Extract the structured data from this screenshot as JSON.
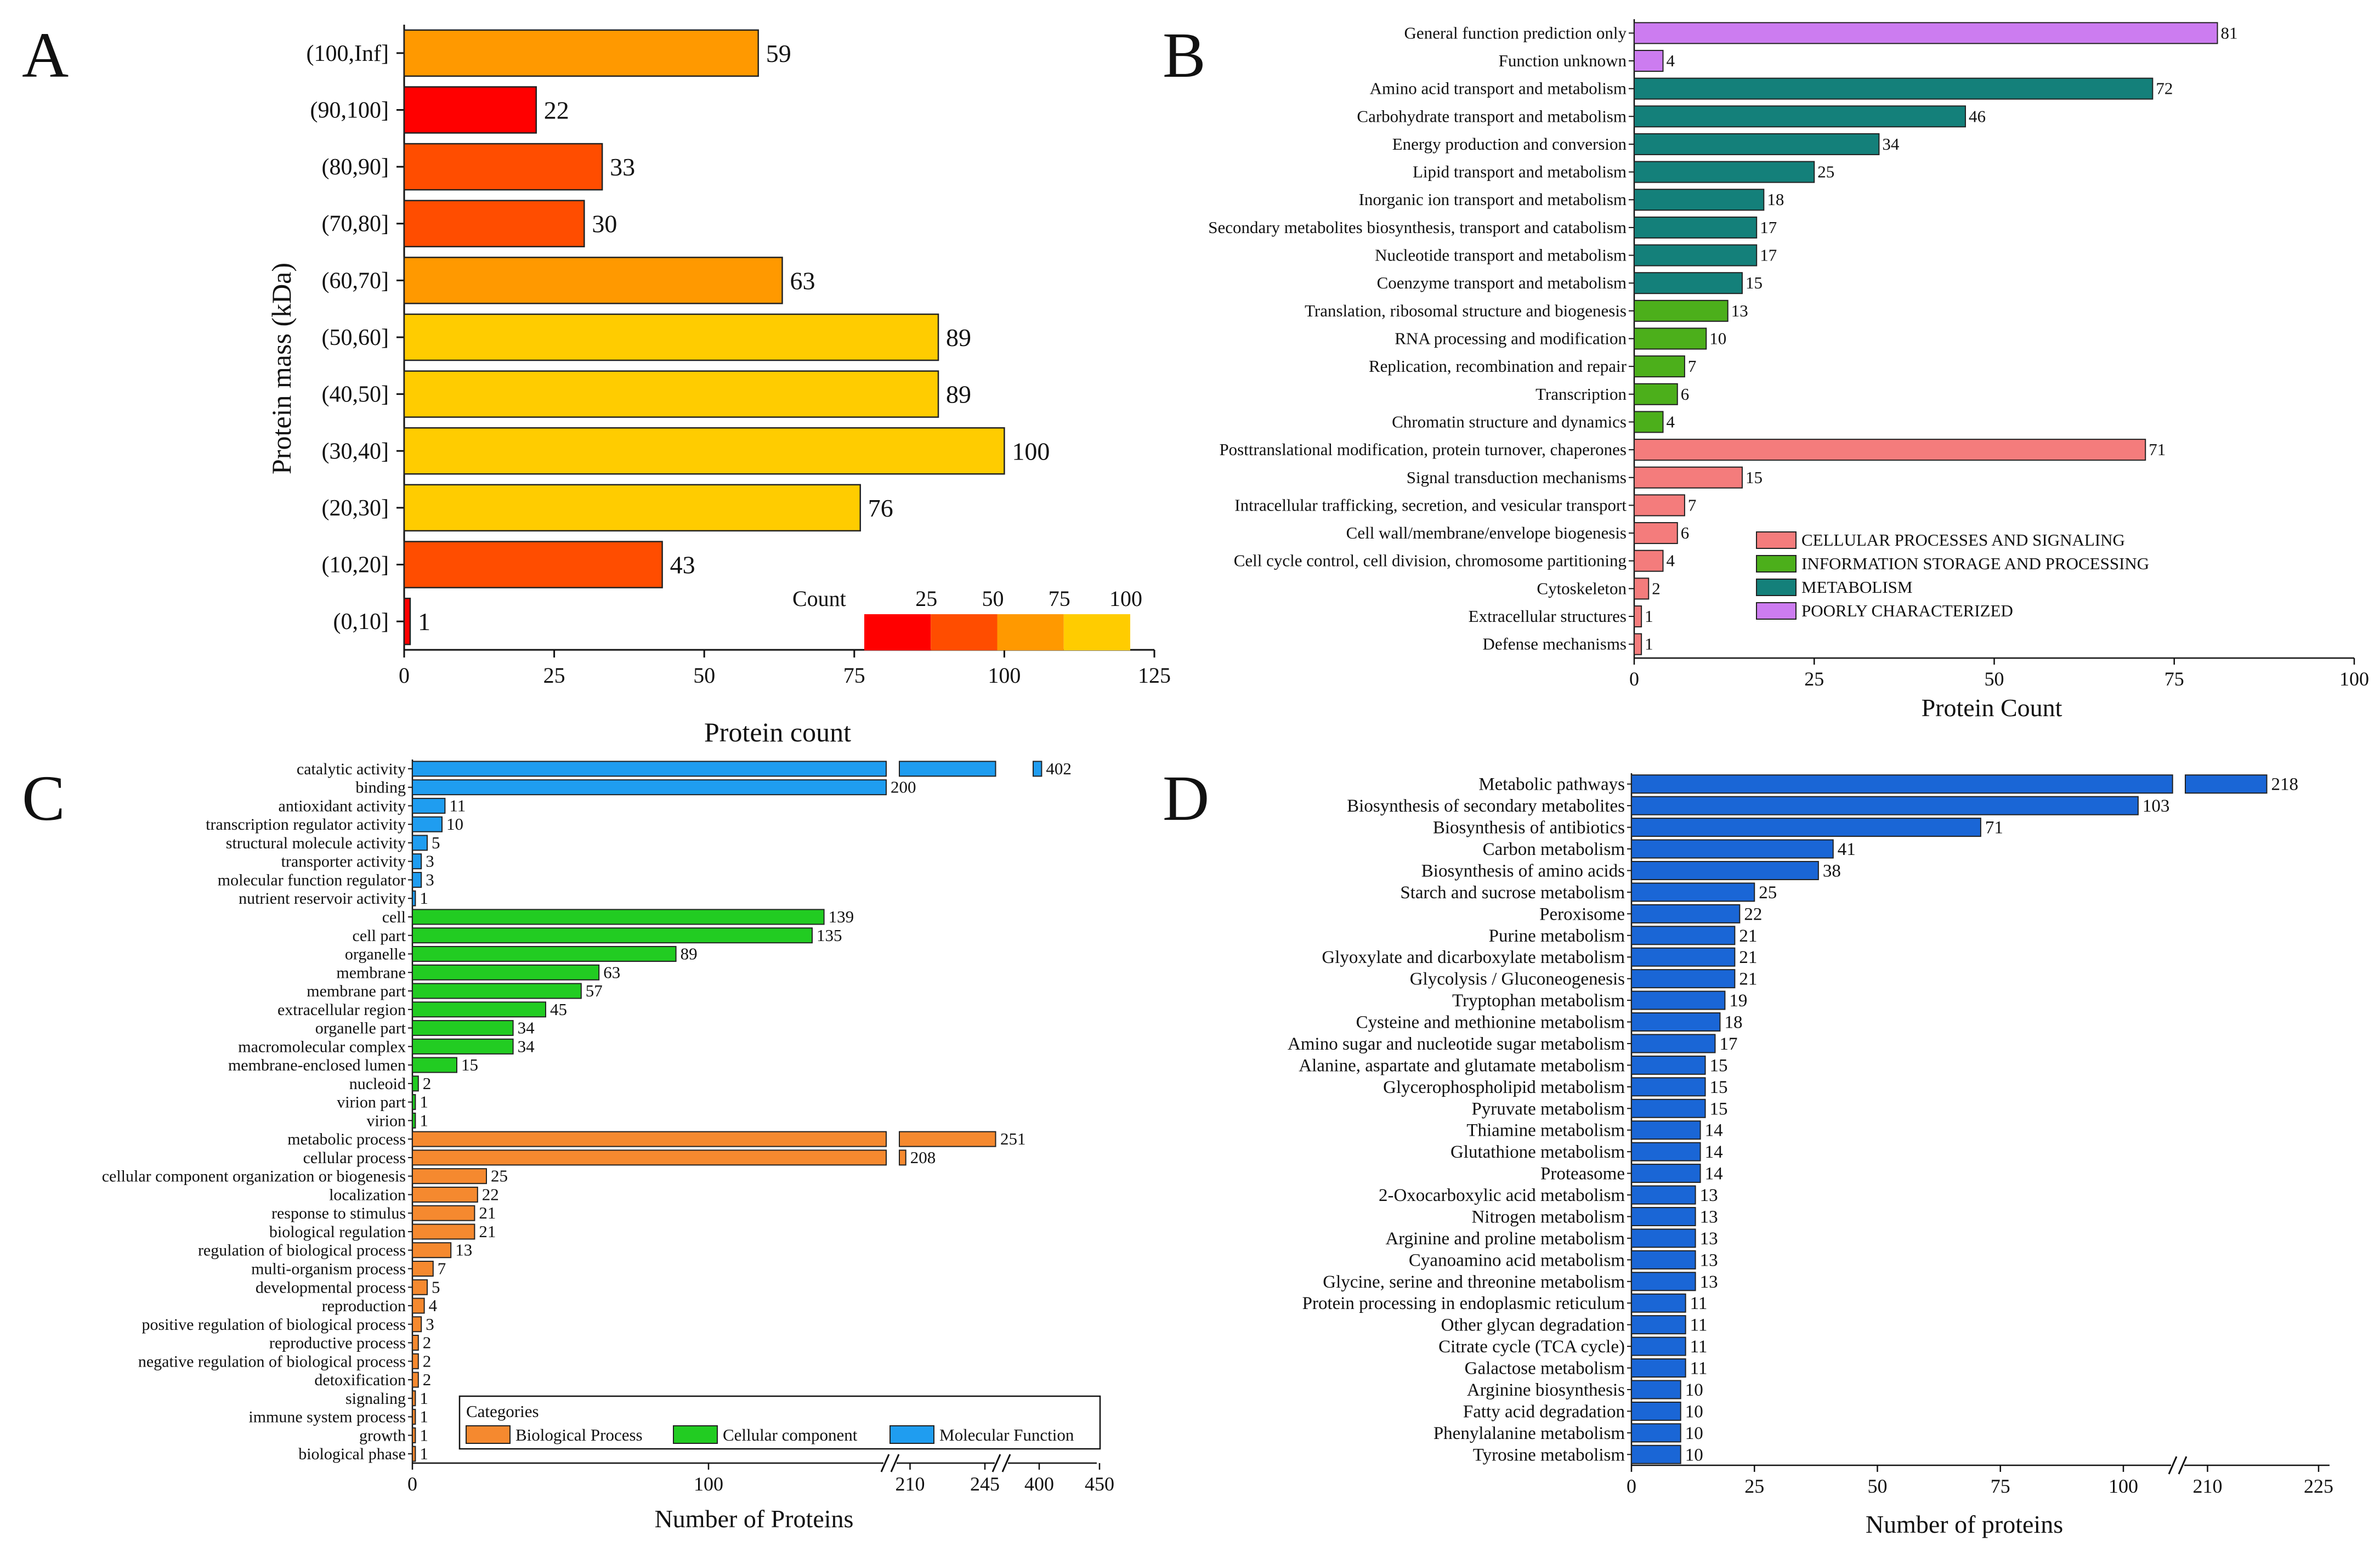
{
  "chart_data": [
    {
      "id": "A",
      "panel_letter": "A",
      "type": "bar",
      "orientation": "horizontal",
      "categories": [
        "(100,Inf]",
        "(90,100]",
        "(80,90]",
        "(70,80]",
        "(60,70]",
        "(50,60]",
        "(40,50]",
        "(30,40]",
        "(20,30]",
        "(10,20]",
        "(0,10]"
      ],
      "values": [
        59,
        22,
        33,
        30,
        63,
        89,
        89,
        100,
        76,
        43,
        1
      ],
      "xlabel": "Protein count",
      "ylabel": "Protein mass (kDa)",
      "xlim": [
        0,
        125
      ],
      "xticks": [
        0,
        25,
        50,
        75,
        100,
        125
      ],
      "color_scale": {
        "title": "Count",
        "ticks": [
          25,
          50,
          75,
          100
        ],
        "colors": [
          "#ff0000",
          "#ff4d00",
          "#ff9900",
          "#ffcc00"
        ]
      }
    },
    {
      "id": "B",
      "panel_letter": "B",
      "type": "bar",
      "orientation": "horizontal",
      "categories": [
        "General function prediction only",
        "Function unknown",
        "Amino acid transport and metabolism",
        "Carbohydrate transport and metabolism",
        "Energy production and conversion",
        "Lipid transport and metabolism",
        "Inorganic ion transport and metabolism",
        "Secondary metabolites biosynthesis, transport and catabolism",
        "Nucleotide transport and metabolism",
        "Coenzyme transport and metabolism",
        "Translation, ribosomal structure and biogenesis",
        "RNA processing and modification",
        "Replication, recombination and repair",
        "Transcription",
        "Chromatin structure and dynamics",
        "Posttranslational modification, protein turnover, chaperones",
        "Signal transduction mechanisms",
        "Intracellular trafficking, secretion, and vesicular transport",
        "Cell wall/membrane/envelope biogenesis",
        "Cell cycle control, cell division, chromosome partitioning",
        "Cytoskeleton",
        "Extracellular structures",
        "Defense mechanisms"
      ],
      "values": [
        81,
        4,
        72,
        46,
        34,
        25,
        18,
        17,
        17,
        15,
        13,
        10,
        7,
        6,
        4,
        71,
        15,
        7,
        6,
        4,
        2,
        1,
        1
      ],
      "groups": [
        3,
        3,
        2,
        2,
        2,
        2,
        2,
        2,
        2,
        2,
        1,
        1,
        1,
        1,
        1,
        0,
        0,
        0,
        0,
        0,
        0,
        0,
        0
      ],
      "legend": [
        "CELLULAR PROCESSES AND SIGNALING",
        "INFORMATION STORAGE AND PROCESSING",
        "METABOLISM",
        "POORLY CHARACTERIZED"
      ],
      "group_colors": [
        "#f47c7c",
        "#4caf1b",
        "#14807a",
        "#cc7cf0"
      ],
      "xlabel": "Protein Count",
      "xlim": [
        0,
        100
      ],
      "xticks": [
        0,
        25,
        50,
        75,
        100
      ]
    },
    {
      "id": "C",
      "panel_letter": "C",
      "type": "bar",
      "orientation": "horizontal",
      "categories": [
        "catalytic activity",
        "binding",
        "antioxidant activity",
        "transcription regulator activity",
        "structural molecule activity",
        "transporter activity",
        "molecular function regulator",
        "nutrient reservoir activity",
        "cell",
        "cell part",
        "organelle",
        "membrane",
        "membrane part",
        "extracellular region",
        "organelle part",
        "macromolecular complex",
        "membrane-enclosed lumen",
        "nucleoid",
        "virion part",
        "virion",
        "metabolic process",
        "cellular process",
        "cellular component organization or biogenesis",
        "localization",
        "response to stimulus",
        "biological regulation",
        "regulation of biological process",
        "multi-organism process",
        "developmental process",
        "reproduction",
        "positive regulation of biological process",
        "reproductive process",
        "negative regulation of biological process",
        "detoxification",
        "signaling",
        "immune system process",
        "growth",
        "biological phase"
      ],
      "values": [
        402,
        200,
        11,
        10,
        5,
        3,
        3,
        1,
        139,
        135,
        89,
        63,
        57,
        45,
        34,
        34,
        15,
        2,
        1,
        1,
        251,
        208,
        25,
        22,
        21,
        21,
        13,
        7,
        5,
        4,
        3,
        2,
        2,
        2,
        1,
        1,
        1,
        1
      ],
      "groups": [
        2,
        2,
        2,
        2,
        2,
        2,
        2,
        2,
        1,
        1,
        1,
        1,
        1,
        1,
        1,
        1,
        1,
        1,
        1,
        1,
        0,
        0,
        0,
        0,
        0,
        0,
        0,
        0,
        0,
        0,
        0,
        0,
        0,
        0,
        0,
        0,
        0,
        0
      ],
      "legend_title": "Categories",
      "legend": [
        "Biological Process",
        "Cellular component",
        "Molecular Function"
      ],
      "group_colors": [
        "#f5892f",
        "#22cc22",
        "#1f9df0"
      ],
      "xlabel": "Number of Proteins",
      "xticks": [
        0,
        100,
        210,
        245,
        400,
        450
      ],
      "axis_breaks": [
        [
          160,
          205
        ],
        [
          250,
          395
        ]
      ]
    },
    {
      "id": "D",
      "panel_letter": "D",
      "type": "bar",
      "orientation": "horizontal",
      "categories": [
        "Metabolic pathways",
        "Biosynthesis of secondary metabolites",
        "Biosynthesis of antibiotics",
        "Carbon metabolism",
        "Biosynthesis of amino acids",
        "Starch and sucrose metabolism",
        "Peroxisome",
        "Purine metabolism",
        "Glyoxylate and dicarboxylate metabolism",
        "Glycolysis / Gluconeogenesis",
        "Tryptophan metabolism",
        "Cysteine and methionine metabolism",
        "Amino sugar and nucleotide sugar metabolism",
        "Alanine, aspartate and glutamate metabolism",
        "Glycerophospholipid metabolism",
        "Pyruvate metabolism",
        "Thiamine metabolism",
        "Glutathione metabolism",
        "Proteasome",
        "2-Oxocarboxylic acid metabolism",
        "Nitrogen metabolism",
        "Arginine and proline metabolism",
        "Cyanoamino acid metabolism",
        "Glycine, serine and threonine metabolism",
        "Protein processing in endoplasmic reticulum",
        "Other glycan degradation",
        "Citrate cycle (TCA cycle)",
        "Galactose metabolism",
        "Arginine biosynthesis",
        "Fatty acid degradation",
        "Phenylalanine metabolism",
        "Tyrosine metabolism"
      ],
      "values": [
        218,
        103,
        71,
        41,
        38,
        25,
        22,
        21,
        21,
        21,
        19,
        18,
        17,
        15,
        15,
        15,
        14,
        14,
        14,
        13,
        13,
        13,
        13,
        13,
        11,
        11,
        11,
        11,
        10,
        10,
        10,
        10
      ],
      "color": "#1a66d6",
      "xlabel": "Number of proteins",
      "xticks": [
        0,
        25,
        50,
        75,
        100,
        210,
        225
      ],
      "axis_breaks": [
        [
          110,
          207
        ]
      ]
    }
  ]
}
